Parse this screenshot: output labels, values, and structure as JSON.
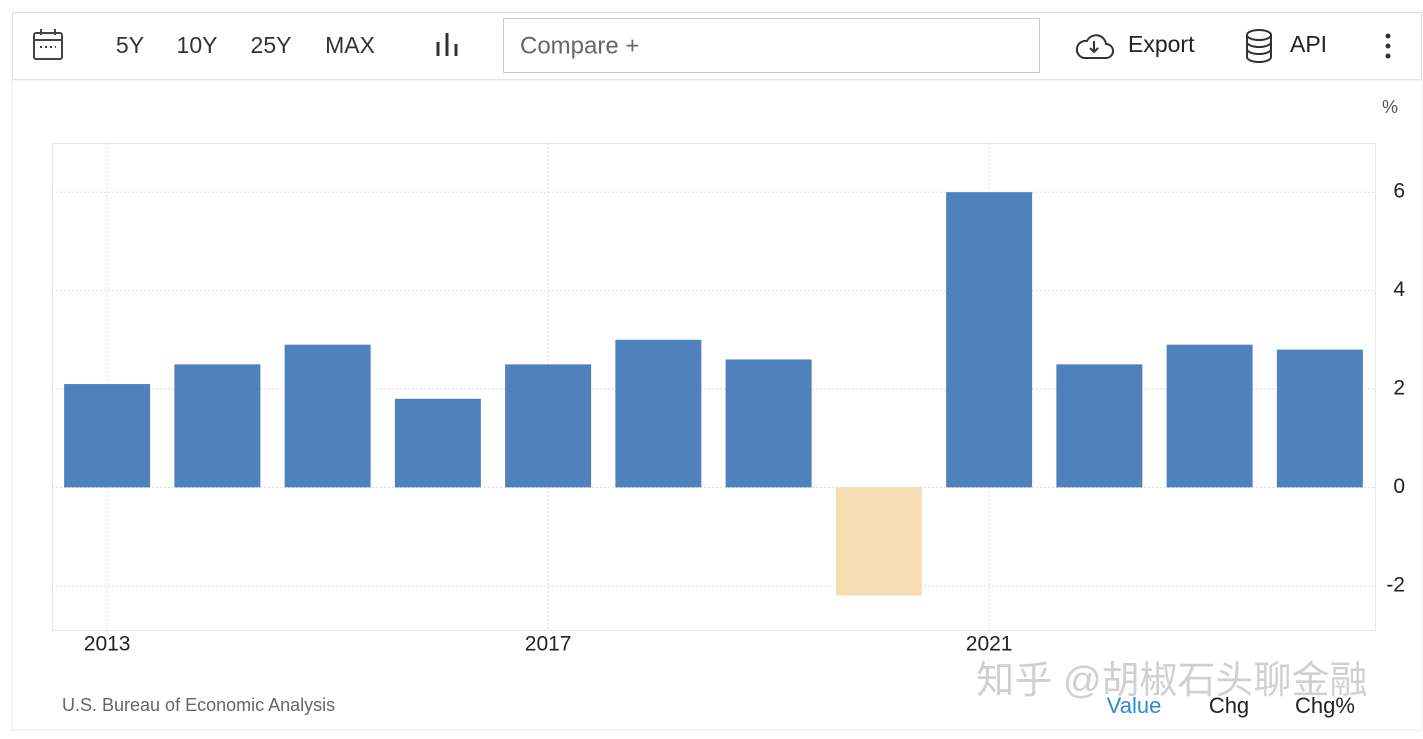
{
  "toolbar": {
    "ranges": [
      "5Y",
      "10Y",
      "25Y",
      "MAX"
    ],
    "compare": "Compare +",
    "export": "Export",
    "api": "API"
  },
  "chart_data": {
    "type": "bar",
    "y_unit": "%",
    "x": [
      2013,
      2014,
      2015,
      2016,
      2017,
      2018,
      2019,
      2020,
      2021,
      2022,
      2023,
      2024
    ],
    "values": [
      2.1,
      2.5,
      2.9,
      1.8,
      2.5,
      3.0,
      2.6,
      -2.2,
      6.0,
      2.5,
      2.9,
      2.8
    ],
    "color": "#4f81bd",
    "negative_color": "#f5deb3",
    "xlim": [
      2012.5,
      2024.5
    ],
    "xticks": [
      2013,
      2017,
      2021
    ],
    "ylim": [
      -2.9,
      7
    ],
    "yticks": [
      -2,
      0,
      2,
      4,
      6
    ],
    "grid": true
  },
  "footer": {
    "source": "U.S. Bureau of Economic Analysis",
    "tabs": [
      "Value",
      "Chg",
      "Chg%"
    ],
    "watermark": "知乎 @胡椒石头聊金融"
  }
}
